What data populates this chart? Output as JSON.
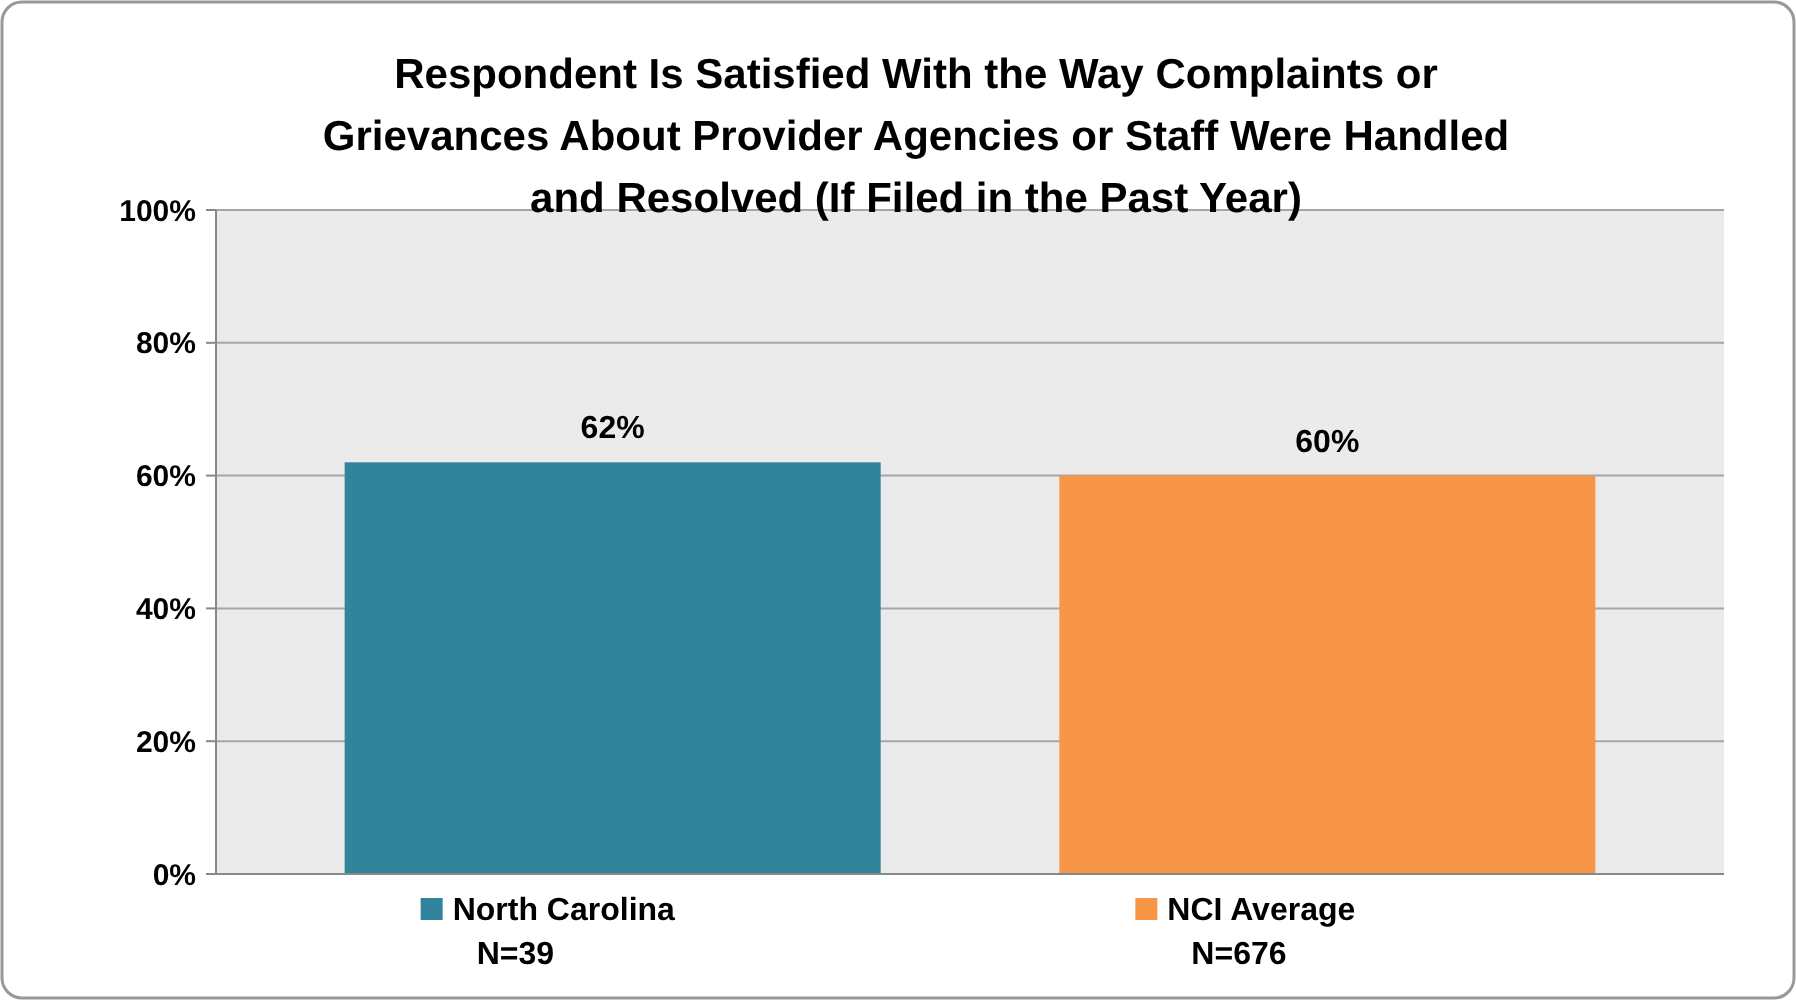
{
  "chart_data": {
    "type": "bar",
    "title": "Respondent Is Satisfied With the Way Complaints or Grievances About Provider Agencies or Staff Were Handled and Resolved (If Filed in the Past Year)",
    "categories": [
      "North Carolina\nN=39",
      "NCI Average\nN=676"
    ],
    "values": [
      62,
      60
    ],
    "colors": [
      "#31849b",
      "#f79646"
    ],
    "ylim": [
      0,
      100
    ],
    "yticks": [
      {
        "value": 0,
        "label": "0%"
      },
      {
        "value": 20,
        "label": "20%"
      },
      {
        "value": 40,
        "label": "40%"
      },
      {
        "value": 60,
        "label": "60%"
      },
      {
        "value": 80,
        "label": "80%"
      },
      {
        "value": 100,
        "label": "100%"
      }
    ],
    "value_labels": [
      "62%",
      "60%"
    ],
    "grid": "y"
  }
}
